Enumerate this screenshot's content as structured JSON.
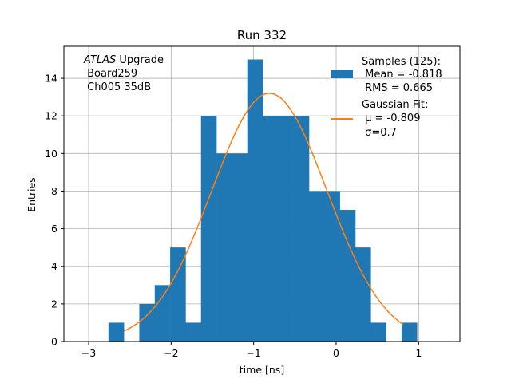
{
  "chart_data": {
    "type": "bar",
    "title": "Run 332",
    "xlabel": "time [ns]",
    "ylabel": "Entries",
    "xlim": [
      -3.3,
      1.5
    ],
    "ylim": [
      0,
      15.7
    ],
    "grid": true,
    "x_ticks": [
      -3,
      -2,
      -1,
      0,
      1
    ],
    "x_tick_labels": [
      "−3",
      "−2",
      "−1",
      "0",
      "1"
    ],
    "y_ticks": [
      0,
      2,
      4,
      6,
      8,
      10,
      12,
      14
    ],
    "y_tick_labels": [
      "0",
      "2",
      "4",
      "6",
      "8",
      "10",
      "12",
      "14"
    ],
    "bin_edges": [
      -2.76,
      -2.573,
      -2.386,
      -2.199,
      -2.012,
      -1.825,
      -1.638,
      -1.451,
      -1.264,
      -1.077,
      -0.89,
      -0.703,
      -0.516,
      -0.329,
      -0.142,
      0.045,
      0.232,
      0.419,
      0.606,
      0.793,
      0.98
    ],
    "counts": [
      1,
      0,
      2,
      3,
      5,
      1,
      12,
      10,
      10,
      15,
      12,
      12,
      12,
      8,
      8,
      7,
      5,
      1,
      0,
      1
    ],
    "fit": {
      "mu": -0.809,
      "sigma": 0.7,
      "amplitude": 13.2,
      "x_range": [
        -2.57,
        0.81
      ]
    },
    "colors": {
      "bars": "#1f77b4",
      "fit": "#ff7f0e",
      "grid": "#b0b0b0"
    },
    "legend": {
      "placement": "top-right",
      "samples_lines": [
        "Samples (125):",
        " Mean = -0.818",
        " RMS = 0.665"
      ],
      "fit_lines": [
        "Gaussian Fit:",
        " μ = -0.809",
        " σ=0.7"
      ]
    },
    "annotation": {
      "atlas": "ATLAS",
      "upgrade": " Upgrade",
      "lines": [
        " Board259",
        " Ch005 35dB"
      ]
    }
  }
}
